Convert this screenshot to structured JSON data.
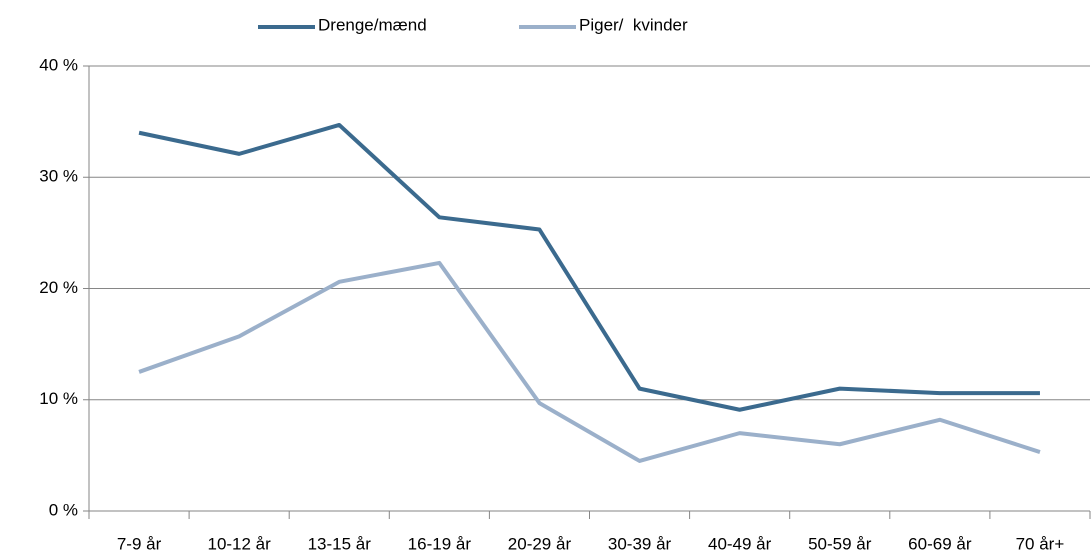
{
  "chart_data": {
    "type": "line",
    "categories": [
      "7-9 år",
      "10-12 år",
      "13-15 år",
      "16-19 år",
      "20-29 år",
      "30-39 år",
      "40-49 år",
      "50-59 år",
      "60-69 år",
      "70 år+"
    ],
    "series": [
      {
        "name": "Drenge/mænd",
        "color": "#3b6a8e",
        "values": [
          34.0,
          32.1,
          34.7,
          26.4,
          25.3,
          11.0,
          9.1,
          11.0,
          10.6,
          10.6
        ]
      },
      {
        "name": "Piger/  kvinder",
        "color": "#9bb0ca",
        "values": [
          12.5,
          15.7,
          20.6,
          22.3,
          9.7,
          4.5,
          7.0,
          6.0,
          8.2,
          5.3
        ]
      }
    ],
    "ylim": [
      0,
      40
    ],
    "yticks": [
      {
        "value": 0,
        "label": "0 %"
      },
      {
        "value": 10,
        "label": "10 %"
      },
      {
        "value": 20,
        "label": "20 %"
      },
      {
        "value": 30,
        "label": "30 %"
      },
      {
        "value": 40,
        "label": "40 %"
      }
    ],
    "grid": true,
    "legend": "top"
  }
}
